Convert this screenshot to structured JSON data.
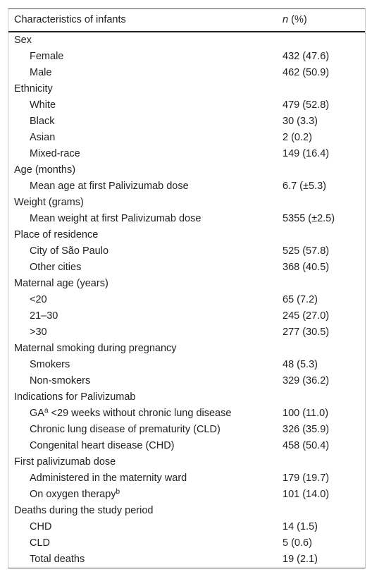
{
  "table": {
    "header": {
      "characteristic": "Characteristics of infants",
      "n": "n",
      "percent": "(%)"
    },
    "groups": [
      {
        "label": "Sex",
        "rows": [
          {
            "label": "Female",
            "value": "432 (47.6)"
          },
          {
            "label": "Male",
            "value": "462 (50.9)"
          }
        ]
      },
      {
        "label": "Ethnicity",
        "rows": [
          {
            "label": "White",
            "value": "479 (52.8)"
          },
          {
            "label": "Black",
            "value": "30 (3.3)"
          },
          {
            "label": "Asian",
            "value": "2 (0.2)"
          },
          {
            "label": "Mixed-race",
            "value": "149 (16.4)"
          }
        ]
      },
      {
        "label": "Age (months)",
        "rows": [
          {
            "label": "Mean age at first Palivizumab dose",
            "value": "6.7 (±5.3)"
          }
        ]
      },
      {
        "label": "Weight (grams)",
        "rows": [
          {
            "label": "Mean weight at first Palivizumab dose",
            "value": "5355 (±2.5)"
          }
        ]
      },
      {
        "label": "Place of residence",
        "rows": [
          {
            "label": "City of São Paulo",
            "value": "525 (57.8)"
          },
          {
            "label": "Other cities",
            "value": "368 (40.5)"
          }
        ]
      },
      {
        "label": "Maternal age (years)",
        "rows": [
          {
            "label": "<20",
            "value": "65 (7.2)"
          },
          {
            "label": "21–30",
            "value": "245 (27.0)"
          },
          {
            "label": ">30",
            "value": "277 (30.5)"
          }
        ]
      },
      {
        "label": "Maternal smoking during pregnancy",
        "rows": [
          {
            "label": "Smokers",
            "value": "48 (5.3)"
          },
          {
            "label": "Non-smokers",
            "value": "329 (36.2)"
          }
        ]
      },
      {
        "label": "Indications for Palivizumab",
        "rows": [
          {
            "label": "GA",
            "sup": "a",
            "label_rest": "<29 weeks without chronic lung disease",
            "value": "100 (11.0)"
          },
          {
            "label": "Chronic lung disease of prematurity (CLD)",
            "value": "326 (35.9)"
          },
          {
            "label": "Congenital heart disease (CHD)",
            "value": "458 (50.4)"
          }
        ]
      },
      {
        "label": "First palivizumab dose",
        "rows": [
          {
            "label": "Administered in the maternity ward",
            "value": "179 (19.7)"
          },
          {
            "label": "On oxygen therapy",
            "sup": "b",
            "value": "101 (14.0)"
          }
        ]
      },
      {
        "label": "Deaths during the study period",
        "rows": [
          {
            "label": "CHD",
            "value": "14 (1.5)"
          },
          {
            "label": "CLD",
            "value": "5 (0.6)"
          },
          {
            "label": "Total deaths",
            "value": "19 (2.1)"
          }
        ]
      }
    ]
  }
}
